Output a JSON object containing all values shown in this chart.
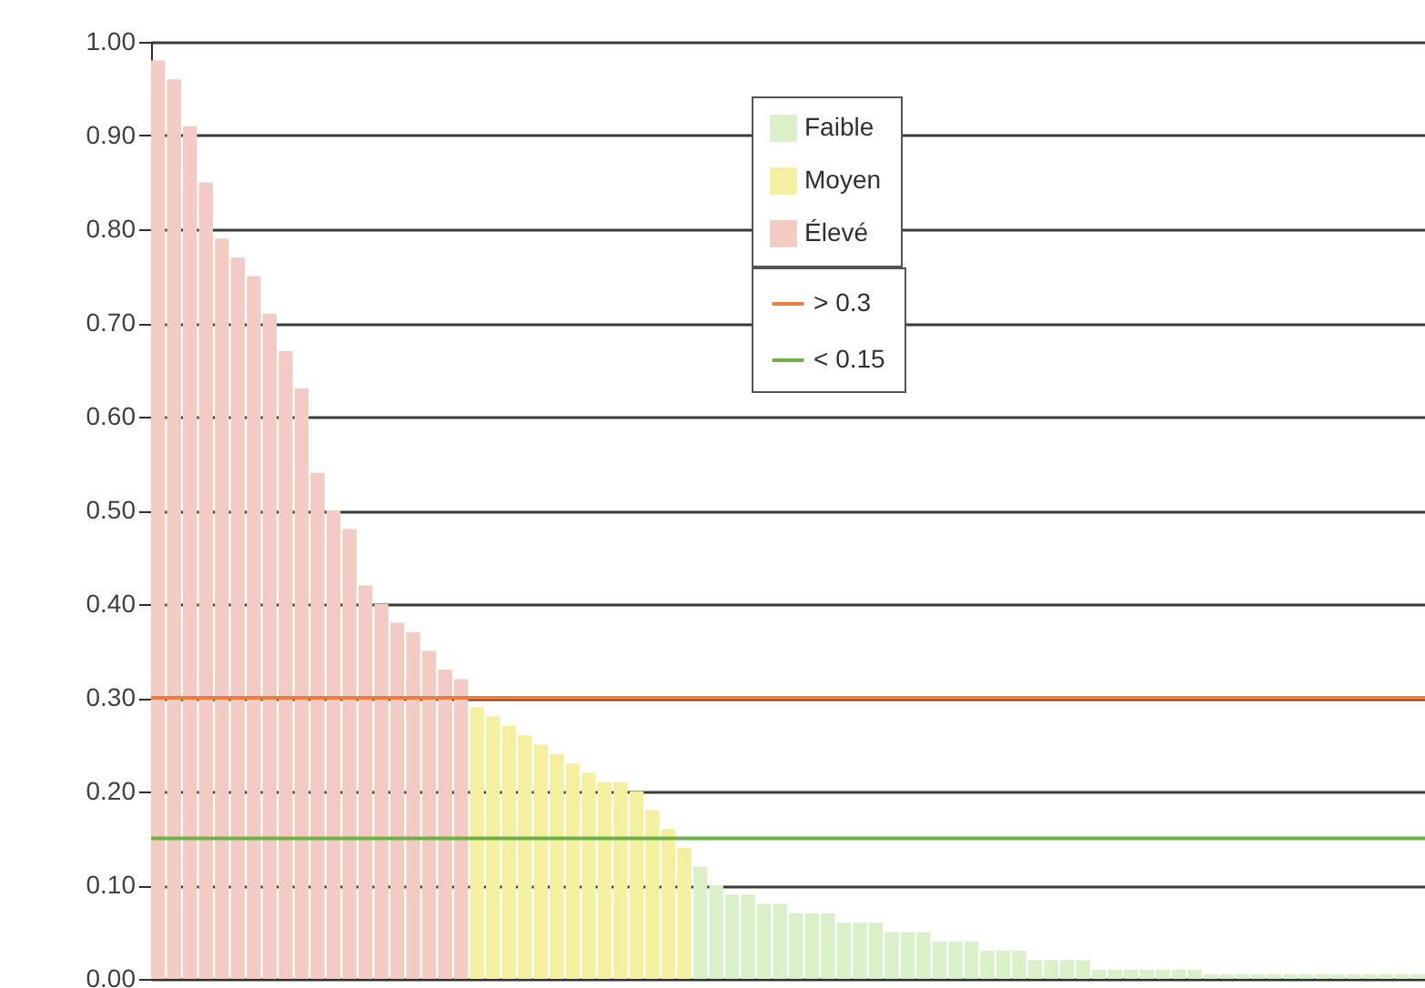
{
  "chart_data": {
    "type": "bar",
    "categories": [
      null,
      null,
      null,
      null,
      null,
      null,
      null,
      null,
      null,
      null,
      null,
      null,
      null,
      null,
      null,
      null,
      null,
      null,
      null,
      null,
      null,
      null,
      null,
      null,
      null,
      null,
      null,
      null,
      null,
      null,
      null,
      null,
      null,
      null,
      null,
      null,
      null,
      null,
      null,
      null,
      null,
      null,
      null,
      null,
      null,
      null,
      null,
      null,
      null,
      null,
      null,
      null,
      null,
      null,
      null,
      null,
      null,
      null,
      null,
      null,
      null,
      null,
      null,
      null,
      null,
      null,
      null,
      null,
      null,
      null,
      null,
      null,
      null,
      null,
      null,
      null,
      null,
      null,
      null,
      null
    ],
    "series": [
      {
        "name": "Faible",
        "color": "#d9f0c9",
        "values": [
          null,
          null,
          null,
          null,
          null,
          null,
          null,
          null,
          null,
          null,
          null,
          null,
          null,
          null,
          null,
          null,
          null,
          null,
          null,
          null,
          null,
          null,
          null,
          null,
          null,
          null,
          null,
          null,
          null,
          null,
          null,
          null,
          null,
          null,
          0.12,
          0.1,
          0.09,
          0.09,
          0.08,
          0.08,
          0.07,
          0.07,
          0.07,
          0.06,
          0.06,
          0.06,
          0.05,
          0.05,
          0.05,
          0.04,
          0.04,
          0.04,
          0.03,
          0.03,
          0.03,
          0.02,
          0.02,
          0.02,
          0.02,
          0.01,
          0.01,
          0.01,
          0.01,
          0.01,
          0.01,
          0.01,
          0.005,
          0.005,
          0.005,
          0.005,
          0.005,
          0.005,
          0.005,
          0.005,
          0.005,
          0.005,
          0.005,
          0.005,
          0.005,
          0.005
        ]
      },
      {
        "name": "Moyen",
        "color": "#f4f0a0",
        "values": [
          null,
          null,
          null,
          null,
          null,
          null,
          null,
          null,
          null,
          null,
          null,
          null,
          null,
          null,
          null,
          null,
          null,
          null,
          null,
          null,
          0.29,
          0.28,
          0.27,
          0.26,
          0.25,
          0.24,
          0.23,
          0.22,
          0.21,
          0.21,
          0.2,
          0.18,
          0.16,
          0.14,
          null,
          null,
          null,
          null,
          null,
          null,
          null,
          null,
          null,
          null,
          null,
          null,
          null,
          null,
          null,
          null,
          null,
          null,
          null,
          null,
          null,
          null,
          null,
          null,
          null,
          null,
          null,
          null,
          null,
          null,
          null,
          null,
          null,
          null,
          null,
          null,
          null,
          null,
          null,
          null,
          null,
          null,
          null,
          null,
          null,
          null
        ]
      },
      {
        "name": "Élevé",
        "color": "#f2cbc2",
        "values": [
          0.98,
          0.96,
          0.91,
          0.85,
          0.79,
          0.77,
          0.75,
          0.71,
          0.67,
          0.63,
          0.54,
          0.5,
          0.48,
          0.42,
          0.4,
          0.38,
          0.37,
          0.35,
          0.33,
          0.32,
          null,
          null,
          null,
          null,
          null,
          null,
          null,
          null,
          null,
          null,
          null,
          null,
          null,
          null,
          null,
          null,
          null,
          null,
          null,
          null,
          null,
          null,
          null,
          null,
          null,
          null,
          null,
          null,
          null,
          null,
          null,
          null,
          null,
          null,
          null,
          null,
          null,
          null,
          null,
          null,
          null,
          null,
          null,
          null,
          null,
          null,
          null,
          null,
          null,
          null,
          null,
          null,
          null,
          null,
          null,
          null,
          null,
          null,
          null,
          null
        ]
      }
    ],
    "ylim": [
      0,
      1
    ],
    "yticks": [
      {
        "value": 0,
        "label": "0.00"
      },
      {
        "value": 0.1,
        "label": "0.10"
      },
      {
        "value": 0.2,
        "label": "0.20"
      },
      {
        "value": 0.3,
        "label": "0.30"
      },
      {
        "value": 0.4,
        "label": "0.40"
      },
      {
        "value": 0.5,
        "label": "0.50"
      },
      {
        "value": 0.6,
        "label": "0.60"
      },
      {
        "value": 0.7,
        "label": "0.70"
      },
      {
        "value": 0.8,
        "label": "0.80"
      },
      {
        "value": 0.9,
        "label": "0.90"
      },
      {
        "value": 1,
        "label": "1.00"
      }
    ],
    "ref_lines": [
      {
        "axis": "y",
        "value": 0.3,
        "label": "> 0.3",
        "color": "#f07c3c"
      },
      {
        "axis": "y",
        "value": 0.15,
        "label": "< 0.15",
        "color": "#70b048"
      }
    ],
    "grid": "y",
    "legend": "top right",
    "tick_labels": "y"
  }
}
